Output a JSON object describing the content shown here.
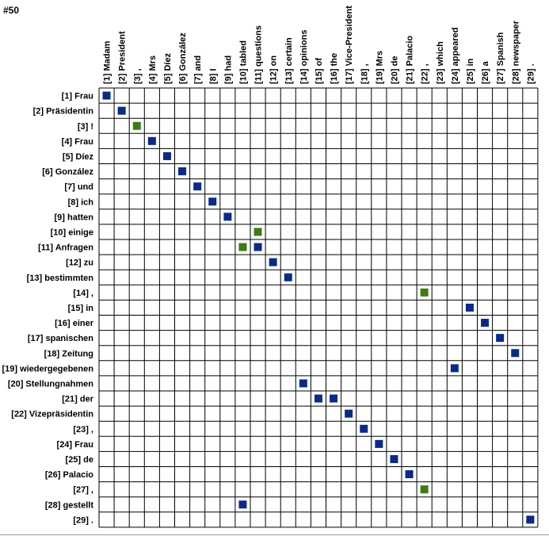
{
  "pair_id": "#50",
  "colors": {
    "sure": "#0a2a8a",
    "possible": "#3e7d14",
    "grid": "#000000"
  },
  "target_words": [
    "[1] Madam",
    "[2] President",
    "[3] ,",
    "[4] Mrs",
    "[5] Díez",
    "[6] González",
    "[7] and",
    "[8] I",
    "[9] had",
    "[10] tabled",
    "[11] questions",
    "[12] on",
    "[13] certain",
    "[14] opinions",
    "[15] of",
    "[16] the",
    "[17] Vice-President",
    "[18] ,",
    "[19] Mrs",
    "[20] de",
    "[21] Palacio",
    "[22] ,",
    "[23] which",
    "[24] appeared",
    "[25] in",
    "[26] a",
    "[27] Spanish",
    "[28] newspaper",
    "[29] ."
  ],
  "source_words": [
    "[1] Frau",
    "[2] Präsidentin",
    "[3] !",
    "[4] Frau",
    "[5] Díez",
    "[6] González",
    "[7] und",
    "[8] ich",
    "[9] hatten",
    "[10] einige",
    "[11] Anfragen",
    "[12] zu",
    "[13] bestimmten",
    "[14] ,",
    "[15] in",
    "[16] einer",
    "[17] spanischen",
    "[18] Zeitung",
    "[19] wiedergegebenen",
    "[20] Stellungnahmen",
    "[21] der",
    "[22] Vizepräsidentin",
    "[23] ,",
    "[24] Frau",
    "[25] de",
    "[26] Palacio",
    "[27] ,",
    "[28] gestellt",
    "[29] ."
  ],
  "alignments": [
    {
      "row": 1,
      "col": 1,
      "type": "sure"
    },
    {
      "row": 2,
      "col": 2,
      "type": "sure"
    },
    {
      "row": 3,
      "col": 3,
      "type": "possible"
    },
    {
      "row": 4,
      "col": 4,
      "type": "sure"
    },
    {
      "row": 5,
      "col": 5,
      "type": "sure"
    },
    {
      "row": 6,
      "col": 6,
      "type": "sure"
    },
    {
      "row": 7,
      "col": 7,
      "type": "sure"
    },
    {
      "row": 8,
      "col": 8,
      "type": "sure"
    },
    {
      "row": 9,
      "col": 9,
      "type": "sure"
    },
    {
      "row": 10,
      "col": 11,
      "type": "possible"
    },
    {
      "row": 11,
      "col": 10,
      "type": "possible"
    },
    {
      "row": 11,
      "col": 11,
      "type": "sure"
    },
    {
      "row": 12,
      "col": 12,
      "type": "sure"
    },
    {
      "row": 13,
      "col": 13,
      "type": "sure"
    },
    {
      "row": 14,
      "col": 22,
      "type": "possible"
    },
    {
      "row": 15,
      "col": 25,
      "type": "sure"
    },
    {
      "row": 16,
      "col": 26,
      "type": "sure"
    },
    {
      "row": 17,
      "col": 27,
      "type": "sure"
    },
    {
      "row": 18,
      "col": 28,
      "type": "sure"
    },
    {
      "row": 19,
      "col": 24,
      "type": "sure"
    },
    {
      "row": 20,
      "col": 14,
      "type": "sure"
    },
    {
      "row": 21,
      "col": 15,
      "type": "sure"
    },
    {
      "row": 21,
      "col": 16,
      "type": "sure"
    },
    {
      "row": 22,
      "col": 17,
      "type": "sure"
    },
    {
      "row": 23,
      "col": 18,
      "type": "sure"
    },
    {
      "row": 24,
      "col": 19,
      "type": "sure"
    },
    {
      "row": 25,
      "col": 20,
      "type": "sure"
    },
    {
      "row": 26,
      "col": 21,
      "type": "sure"
    },
    {
      "row": 27,
      "col": 22,
      "type": "possible"
    },
    {
      "row": 28,
      "col": 10,
      "type": "sure"
    },
    {
      "row": 29,
      "col": 29,
      "type": "sure"
    }
  ]
}
